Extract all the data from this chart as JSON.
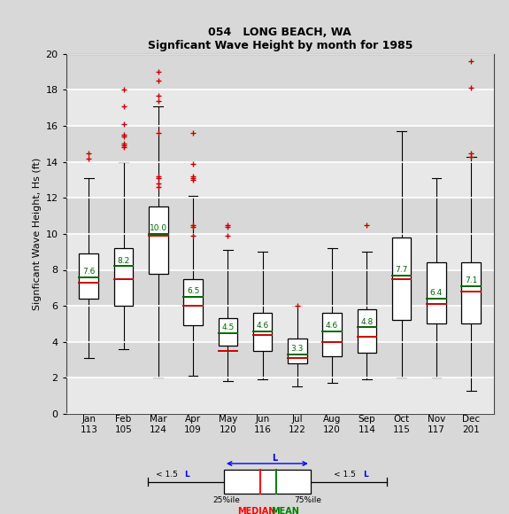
{
  "title1": "054   LONG BEACH, WA",
  "title2": "Signficant Wave Height by month for 1985",
  "ylabel": "Signficant Wave Height, Hs (ft)",
  "months": [
    "Jan",
    "Feb",
    "Mar",
    "Apr",
    "May",
    "Jun",
    "Jul",
    "Aug",
    "Sep",
    "Oct",
    "Nov",
    "Dec"
  ],
  "counts": [
    113,
    105,
    124,
    109,
    120,
    116,
    122,
    120,
    114,
    115,
    117,
    201
  ],
  "ylim": [
    0,
    20
  ],
  "yticks": [
    0,
    2,
    4,
    6,
    8,
    10,
    12,
    14,
    16,
    18,
    20
  ],
  "box_stats": [
    {
      "q1": 6.4,
      "median": 7.3,
      "mean": 7.6,
      "q3": 8.9,
      "whislo": 3.1,
      "whishi": 13.1,
      "fliers": [
        14.5,
        14.2
      ]
    },
    {
      "q1": 6.0,
      "median": 7.5,
      "mean": 8.2,
      "q3": 9.2,
      "whislo": 3.6,
      "whishi": 14.0,
      "fliers": [
        18.0,
        17.1,
        16.1,
        15.5,
        15.4,
        15.0,
        14.9,
        14.8
      ]
    },
    {
      "q1": 7.8,
      "median": 9.9,
      "mean": 10.0,
      "q3": 11.5,
      "whislo": 2.0,
      "whishi": 17.1,
      "fliers": [
        19.0,
        18.5,
        17.7,
        17.4,
        15.6,
        13.2,
        13.1,
        12.8,
        12.6
      ]
    },
    {
      "q1": 4.9,
      "median": 6.0,
      "mean": 6.5,
      "q3": 7.5,
      "whislo": 2.1,
      "whishi": 12.1,
      "fliers": [
        15.6,
        13.9,
        13.2,
        13.1,
        13.0,
        10.5,
        10.4,
        9.9
      ]
    },
    {
      "q1": 3.8,
      "median": 3.5,
      "mean": 4.5,
      "q3": 5.3,
      "whislo": 1.8,
      "whishi": 9.1,
      "fliers": [
        10.5,
        10.4,
        9.9
      ]
    },
    {
      "q1": 3.5,
      "median": 4.4,
      "mean": 4.6,
      "q3": 5.6,
      "whislo": 1.9,
      "whishi": 9.0,
      "fliers": []
    },
    {
      "q1": 2.8,
      "median": 3.1,
      "mean": 3.3,
      "q3": 4.2,
      "whislo": 1.5,
      "whishi": 6.0,
      "fliers": [
        6.0
      ]
    },
    {
      "q1": 3.2,
      "median": 4.0,
      "mean": 4.6,
      "q3": 5.6,
      "whislo": 1.7,
      "whishi": 9.2,
      "fliers": []
    },
    {
      "q1": 3.4,
      "median": 4.3,
      "mean": 4.8,
      "q3": 5.8,
      "whislo": 1.9,
      "whishi": 9.0,
      "fliers": [
        10.5
      ]
    },
    {
      "q1": 5.2,
      "median": 7.5,
      "mean": 7.7,
      "q3": 9.8,
      "whislo": 2.0,
      "whishi": 15.7,
      "fliers": []
    },
    {
      "q1": 5.0,
      "median": 6.1,
      "mean": 6.4,
      "q3": 8.4,
      "whislo": 2.0,
      "whishi": 13.1,
      "fliers": []
    },
    {
      "q1": 5.0,
      "median": 6.8,
      "mean": 7.1,
      "q3": 8.4,
      "whislo": 1.3,
      "whishi": 14.3,
      "fliers": [
        19.6,
        18.1,
        14.5,
        14.3
      ]
    }
  ],
  "box_color": "white",
  "box_edge_color": "black",
  "median_color": "#cc0000",
  "mean_color": "#006600",
  "whisker_color": "black",
  "flier_color": "#cc0000",
  "bg_color": "#d8d8d8",
  "plot_bg_color": "#e8e8e8",
  "grid_color": "white",
  "stripe_colors": [
    "#e8e8e8",
    "#d8d8d8"
  ]
}
